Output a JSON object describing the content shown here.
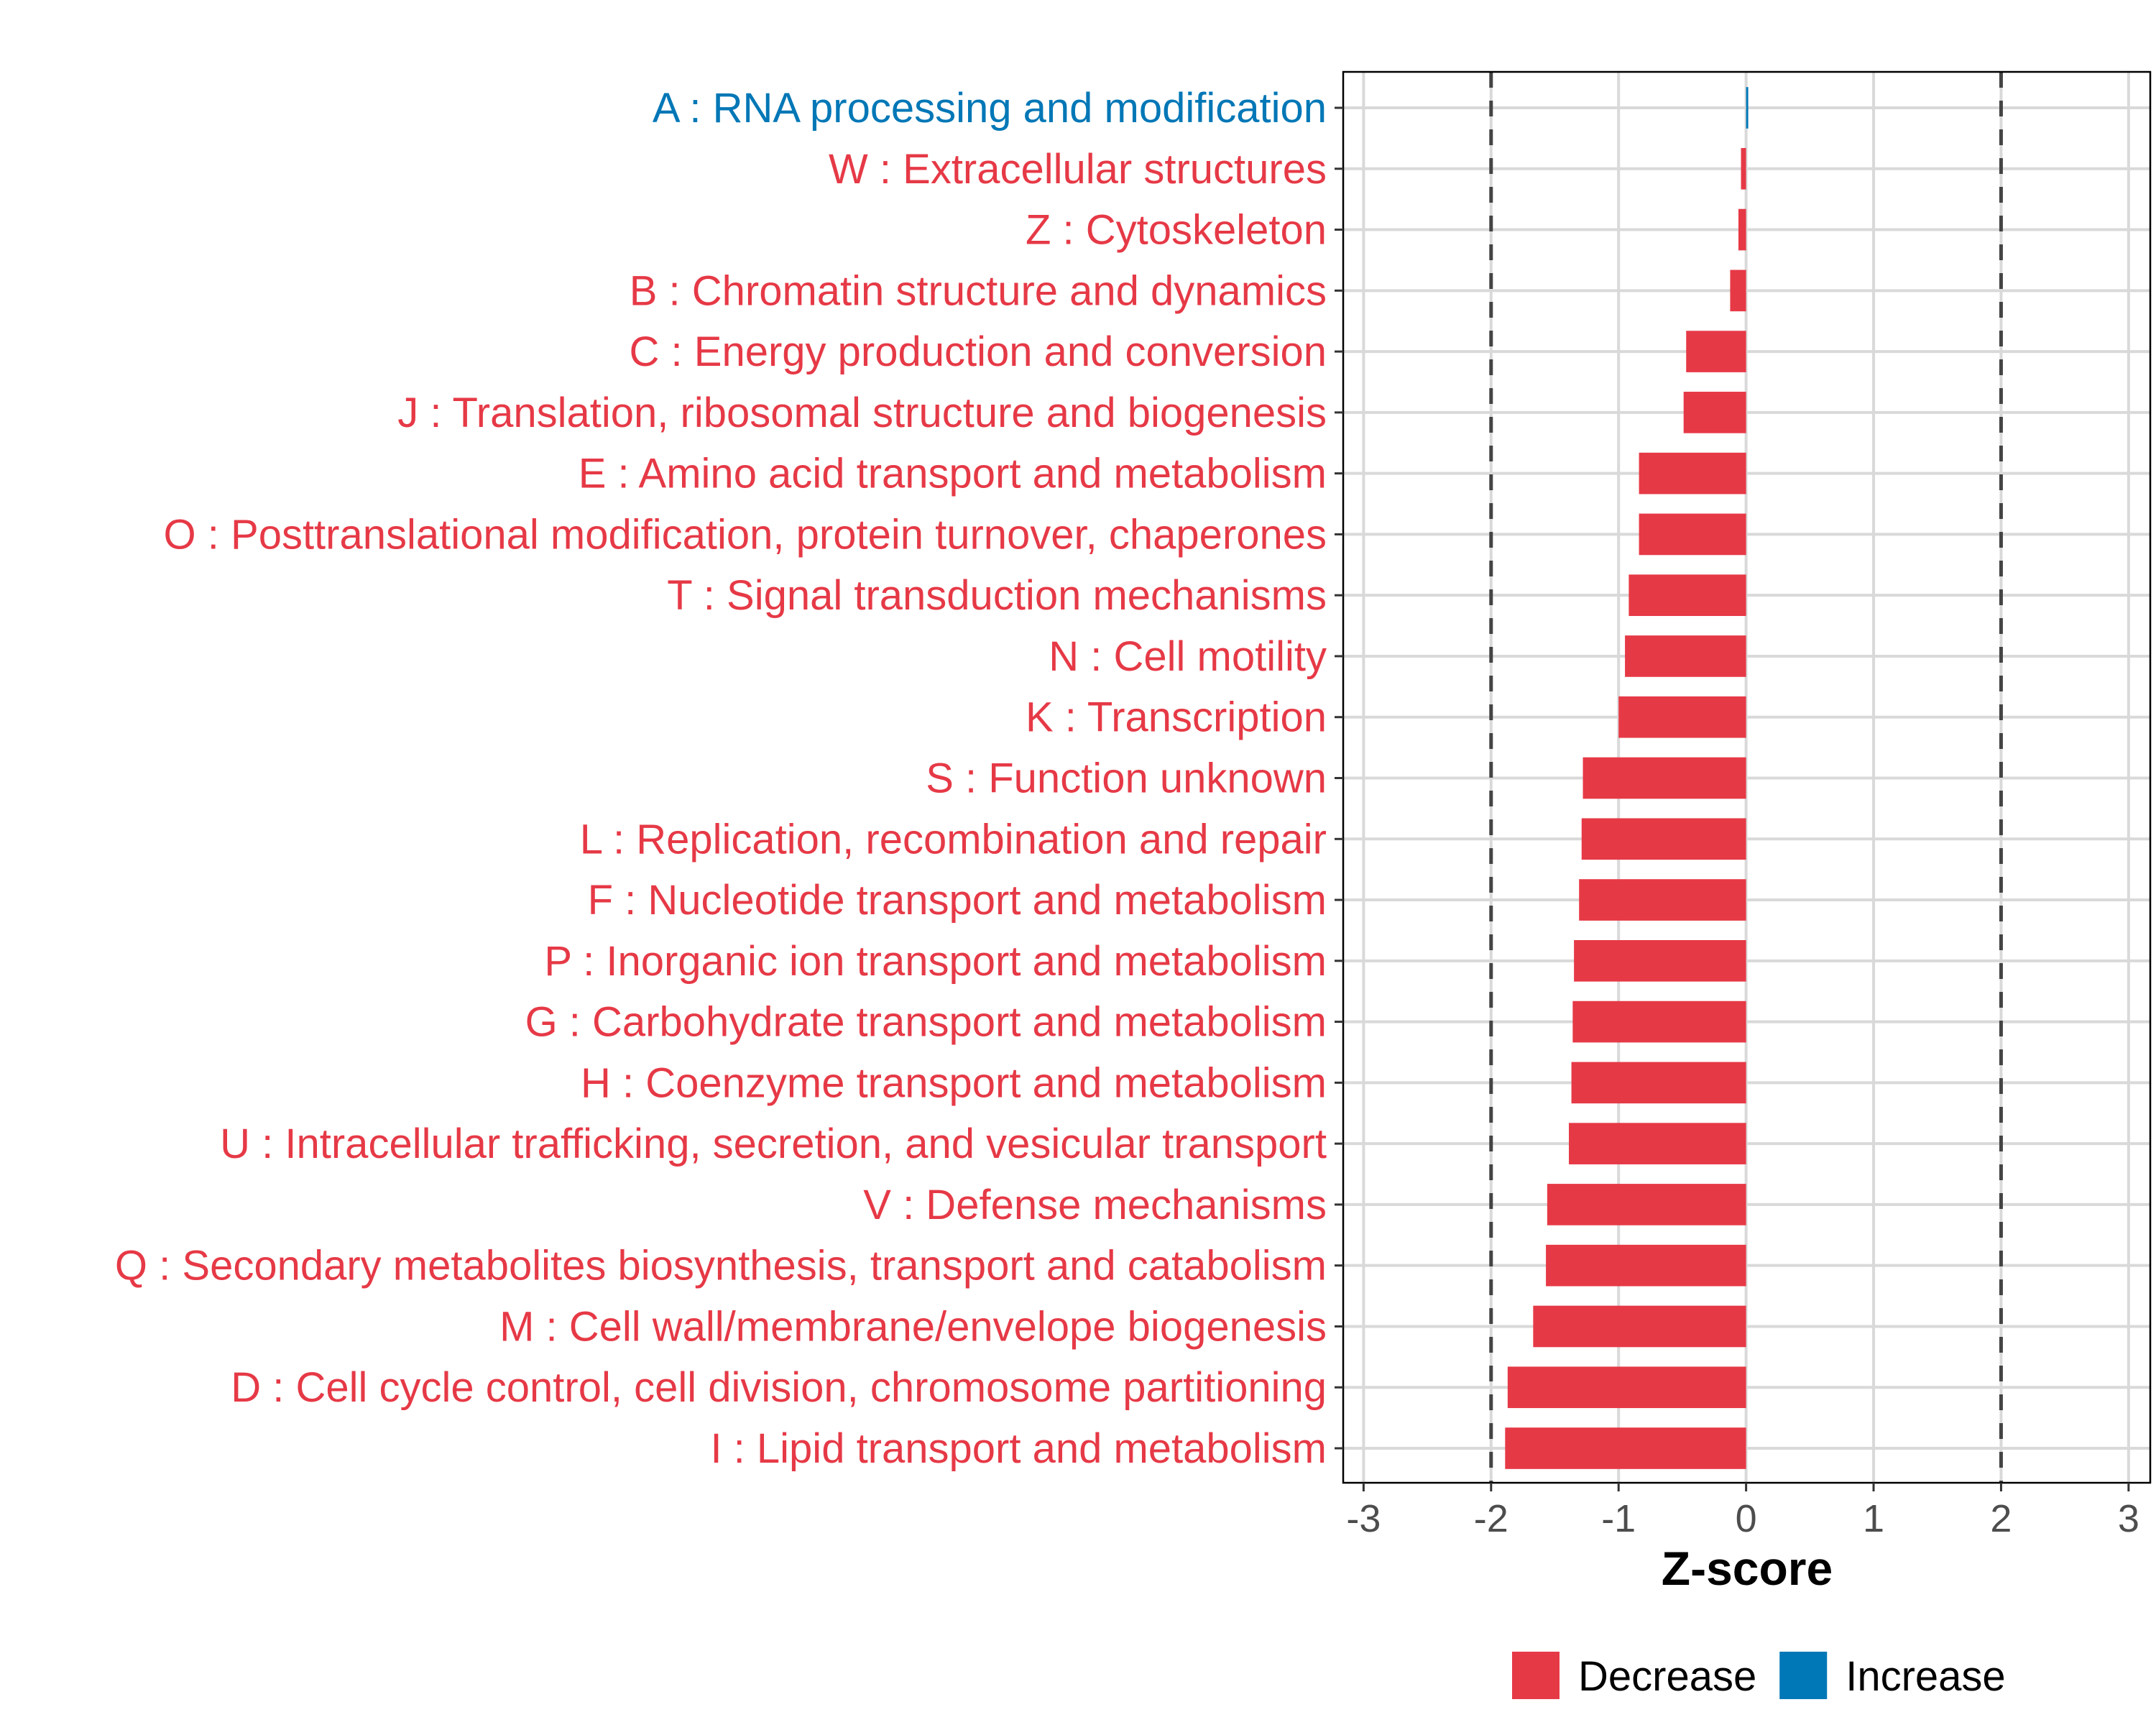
{
  "chart_data": {
    "type": "bar",
    "orientation": "horizontal",
    "title": "",
    "xlabel": "Z-score",
    "ylabel": "",
    "xlim": [
      -3.16,
      3.17
    ],
    "xticks": [
      -3,
      -2,
      -1,
      0,
      1,
      2,
      3
    ],
    "xtick_labels": [
      "-3",
      "-2",
      "-1",
      "0",
      "1",
      "2",
      "3"
    ],
    "reference_lines": [
      -2,
      2
    ],
    "grid": true,
    "legend_position": "bottom",
    "legend": [
      {
        "label": "Decrease",
        "color": "#E63946"
      },
      {
        "label": "Increase",
        "color": "#0077B6"
      }
    ],
    "categories": [
      "A : RNA processing and modification",
      "W : Extracellular structures",
      "Z : Cytoskeleton",
      "B : Chromatin structure and dynamics",
      "C : Energy production and conversion",
      "J : Translation, ribosomal structure and biogenesis",
      "E : Amino acid transport and metabolism",
      "O : Posttranslational modification, protein turnover, chaperones",
      "T : Signal transduction mechanisms",
      "N : Cell motility",
      "K : Transcription",
      "S : Function unknown",
      "L : Replication, recombination and repair",
      "F : Nucleotide transport and metabolism",
      "P : Inorganic ion transport and metabolism",
      "G : Carbohydrate transport and metabolism",
      "H : Coenzyme transport and metabolism",
      "U : Intracellular trafficking, secretion, and vesicular transport",
      "V : Defense mechanisms",
      "Q : Secondary metabolites biosynthesis, transport and catabolism",
      "M : Cell wall/membrane/envelope biogenesis",
      "D : Cell cycle control, cell division, chromosome partitioning",
      "I : Lipid transport and metabolism"
    ],
    "values": [
      0.01,
      -0.04,
      -0.06,
      -0.125,
      -0.47,
      -0.49,
      -0.84,
      -0.84,
      -0.92,
      -0.95,
      -1.0,
      -1.28,
      -1.29,
      -1.31,
      -1.35,
      -1.36,
      -1.37,
      -1.39,
      -1.56,
      -1.57,
      -1.67,
      -1.87,
      -1.89
    ],
    "groups": [
      "Increase",
      "Decrease",
      "Decrease",
      "Decrease",
      "Decrease",
      "Decrease",
      "Decrease",
      "Decrease",
      "Decrease",
      "Decrease",
      "Decrease",
      "Decrease",
      "Decrease",
      "Decrease",
      "Decrease",
      "Decrease",
      "Decrease",
      "Decrease",
      "Decrease",
      "Decrease",
      "Decrease",
      "Decrease",
      "Decrease"
    ]
  }
}
